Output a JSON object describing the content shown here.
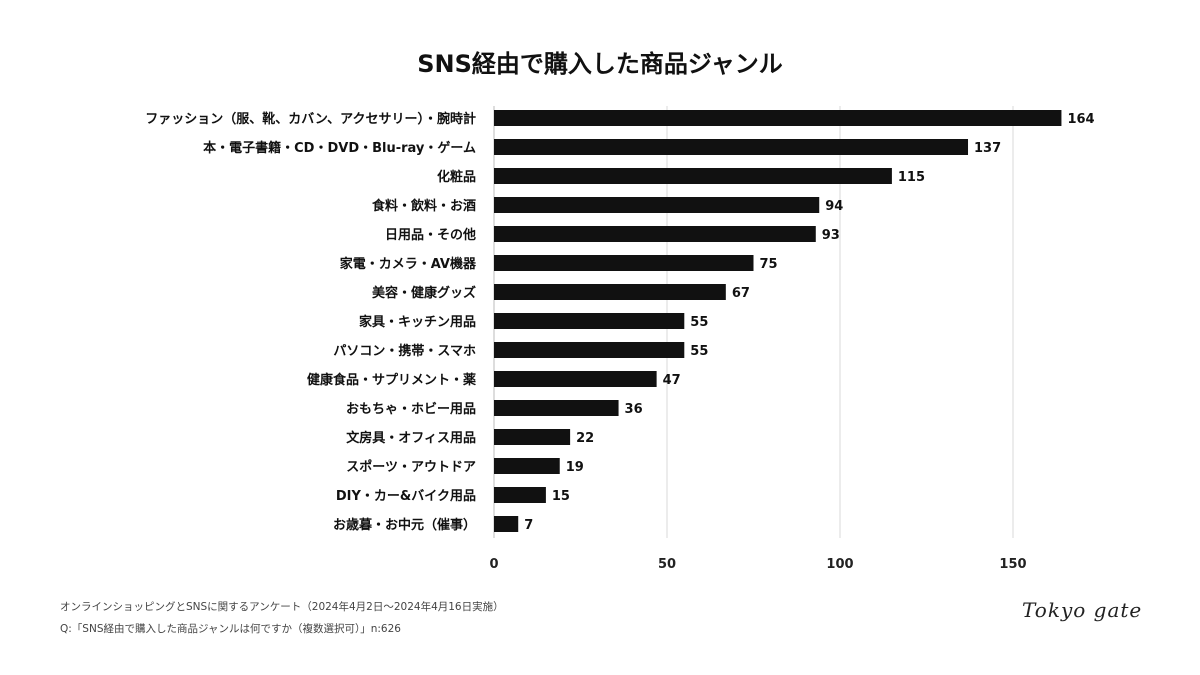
{
  "chart_data": {
    "type": "bar",
    "orientation": "horizontal",
    "title": "SNS経由で購入した商品ジャンル",
    "categories": [
      "ファッション（服、靴、カバン、アクセサリー）・腕時計",
      "本・電子書籍・CD・DVD・Blu-ray・ゲーム",
      "化粧品",
      "食料・飲料・お酒",
      "日用品・その他",
      "家電・カメラ・AV機器",
      "美容・健康グッズ",
      "家具・キッチン用品",
      "パソコン・携帯・スマホ",
      "健康食品・サプリメント・薬",
      "おもちゃ・ホビー用品",
      "文房具・オフィス用品",
      "スポーツ・アウトドア",
      "DIY・カー&バイク用品",
      "お歳暮・お中元（催事）"
    ],
    "values": [
      164,
      137,
      115,
      94,
      93,
      75,
      67,
      55,
      55,
      47,
      36,
      22,
      19,
      15,
      7
    ],
    "xlim": [
      0,
      165
    ],
    "xticks": [
      0,
      50,
      100,
      150
    ],
    "grid": true,
    "bar_color": "#111111",
    "grid_color": "#d9d9d9"
  },
  "notes": {
    "line1": "オンラインショッピングとSNSに関するアンケート（2024年4月2日〜2024年4月16日実施）",
    "line2": "Q:「SNS経由で購入した商品ジャンルは何ですか（複数選択可）」n:626"
  },
  "logo": "Tokyo gate"
}
